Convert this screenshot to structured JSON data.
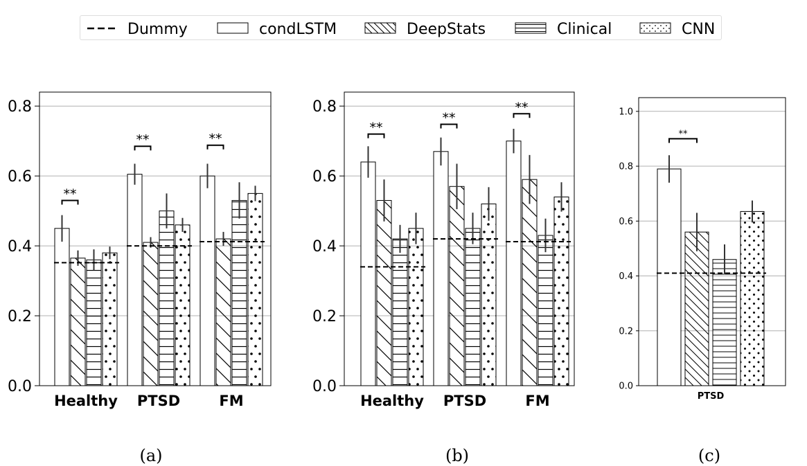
{
  "legend": [
    {
      "name": "Dummy",
      "pattern": "dashed-line"
    },
    {
      "name": "condLSTM",
      "pattern": "empty"
    },
    {
      "name": "DeepStats",
      "pattern": "diagonal-hatch"
    },
    {
      "name": "Clinical",
      "pattern": "horizontal-hatch"
    },
    {
      "name": "CNN",
      "pattern": "dots"
    }
  ],
  "colors": {
    "bar_fill": "#ffffff",
    "bar_edge": "#000000",
    "grid": "#b0b0b0",
    "error_bar": "#333333",
    "dummy_line": "#000000"
  },
  "chart_data": [
    {
      "type": "bar",
      "caption": "(a)",
      "categories": [
        "Healthy",
        "PTSD",
        "FM"
      ],
      "ylim": [
        0,
        0.84
      ],
      "yticks": [
        "0.0",
        "0.2",
        "0.4",
        "0.6",
        "0.8"
      ],
      "ytick_values": [
        0,
        0.2,
        0.4,
        0.6,
        0.8
      ],
      "series": [
        {
          "name": "condLSTM",
          "values": [
            0.45,
            0.605,
            0.6
          ],
          "errors": [
            0.038,
            0.03,
            0.035
          ]
        },
        {
          "name": "DeepStats",
          "values": [
            0.365,
            0.41,
            0.42
          ],
          "errors": [
            0.022,
            0.015,
            0.02
          ]
        },
        {
          "name": "Clinical",
          "values": [
            0.36,
            0.5,
            0.53
          ],
          "errors": [
            0.03,
            0.05,
            0.052
          ]
        },
        {
          "name": "CNN",
          "values": [
            0.38,
            0.46,
            0.55
          ],
          "errors": [
            0.018,
            0.02,
            0.022
          ]
        }
      ],
      "dummy": [
        0.352,
        0.4,
        0.412
      ],
      "significance": [
        {
          "category": "Healthy",
          "label": "**",
          "y": 0.53
        },
        {
          "category": "PTSD",
          "label": "**",
          "y": 0.685
        },
        {
          "category": "FM",
          "label": "**",
          "y": 0.688
        }
      ]
    },
    {
      "type": "bar",
      "caption": "(b)",
      "categories": [
        "Healthy",
        "PTSD",
        "FM"
      ],
      "ylim": [
        0,
        0.84
      ],
      "yticks": [
        "0.0",
        "0.2",
        "0.4",
        "0.6",
        "0.8"
      ],
      "ytick_values": [
        0,
        0.2,
        0.4,
        0.6,
        0.8
      ],
      "series": [
        {
          "name": "condLSTM",
          "values": [
            0.64,
            0.67,
            0.7
          ],
          "errors": [
            0.045,
            0.04,
            0.035
          ]
        },
        {
          "name": "DeepStats",
          "values": [
            0.53,
            0.57,
            0.59
          ],
          "errors": [
            0.06,
            0.065,
            0.07
          ]
        },
        {
          "name": "Clinical",
          "values": [
            0.42,
            0.45,
            0.43
          ],
          "errors": [
            0.04,
            0.045,
            0.048
          ]
        },
        {
          "name": "CNN",
          "values": [
            0.45,
            0.52,
            0.54
          ],
          "errors": [
            0.045,
            0.048,
            0.042
          ]
        }
      ],
      "dummy": [
        0.34,
        0.42,
        0.412
      ],
      "significance": [
        {
          "category": "Healthy",
          "label": "**",
          "y": 0.72
        },
        {
          "category": "PTSD",
          "label": "**",
          "y": 0.748
        },
        {
          "category": "FM",
          "label": "**",
          "y": 0.778
        }
      ]
    },
    {
      "type": "bar",
      "caption": "(c)",
      "categories": [
        "PTSD"
      ],
      "ylim": [
        0,
        1.05
      ],
      "yticks": [
        "0.0",
        "0.2",
        "0.4",
        "0.6",
        "0.8",
        "1.0"
      ],
      "ytick_values": [
        0,
        0.2,
        0.4,
        0.6,
        0.8,
        1.0
      ],
      "series": [
        {
          "name": "condLSTM",
          "values": [
            0.79
          ],
          "errors": [
            0.05
          ]
        },
        {
          "name": "DeepStats",
          "values": [
            0.56
          ],
          "errors": [
            0.07
          ]
        },
        {
          "name": "Clinical",
          "values": [
            0.46
          ],
          "errors": [
            0.055
          ]
        },
        {
          "name": "CNN",
          "values": [
            0.635
          ],
          "errors": [
            0.04
          ]
        }
      ],
      "dummy": [
        0.41
      ],
      "significance": [
        {
          "category": "PTSD",
          "label": "**",
          "y": 0.9
        }
      ]
    }
  ]
}
